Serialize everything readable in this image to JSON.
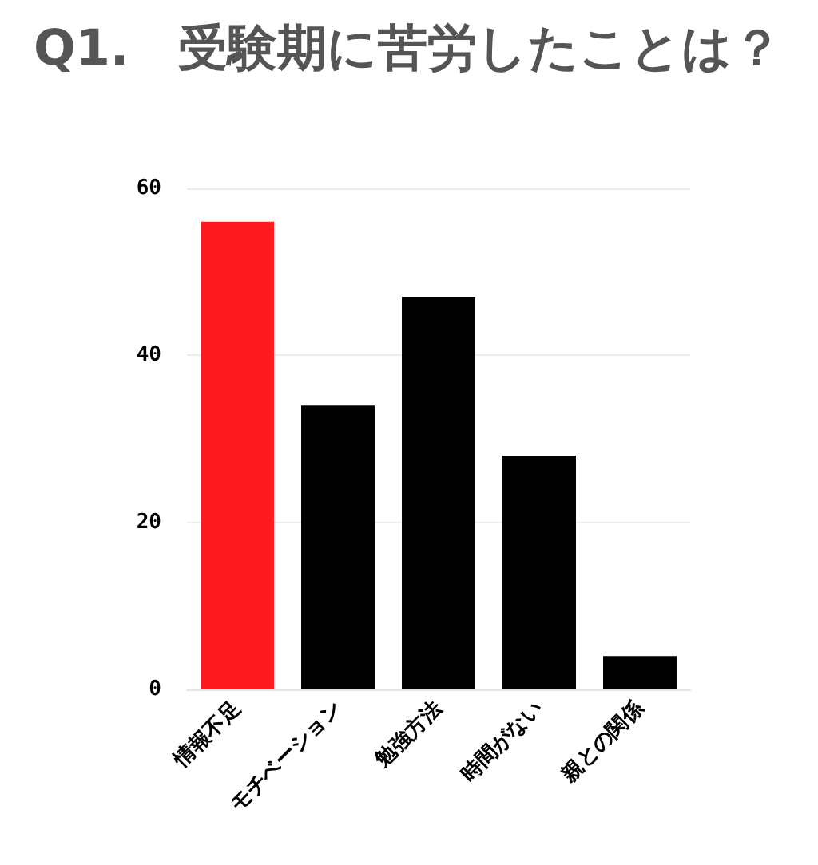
{
  "chart_data": {
    "type": "bar",
    "title": "Q1.　受験期に苦労したことは？",
    "categories": [
      "情報不足",
      "モチベーション",
      "勉強方法",
      "時間がない",
      "親との関係"
    ],
    "values": [
      56,
      34,
      47,
      28,
      4
    ],
    "colors": [
      "#ff1a1f",
      "#000000",
      "#000000",
      "#000000",
      "#000000"
    ],
    "ylim": [
      0,
      60
    ],
    "yticks": [
      0,
      20,
      40,
      60
    ],
    "grid": "y"
  }
}
